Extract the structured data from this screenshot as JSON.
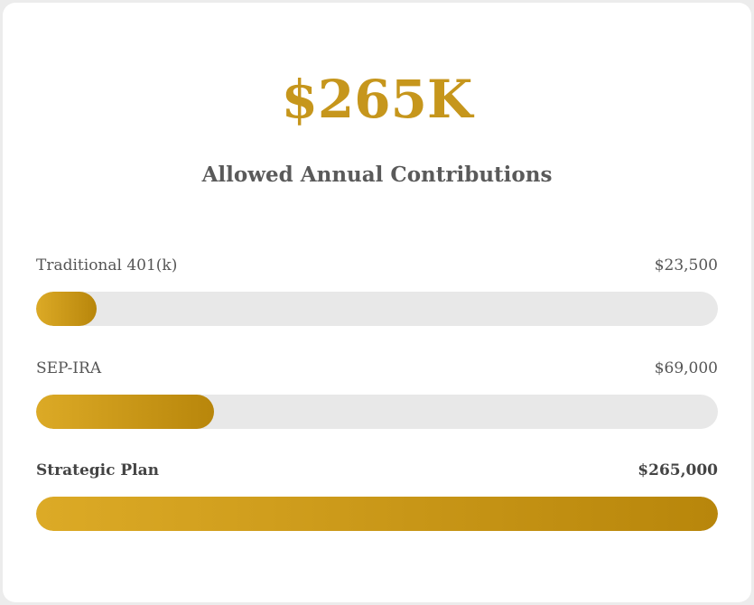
{
  "headline": "$265K",
  "subtitle": "Allowed Annual Contributions",
  "chart_data": {
    "type": "bar",
    "orientation": "horizontal",
    "categories": [
      "Traditional 401(k)",
      "SEP-IRA",
      "Strategic Plan"
    ],
    "values": [
      23500,
      69000,
      265000
    ],
    "value_labels": [
      "$23,500",
      "$69,000",
      "$265,000"
    ],
    "xlim": [
      0,
      265000
    ],
    "highlighted_category": "Strategic Plan",
    "colors": {
      "fill_start": "#dcaa26",
      "fill_end": "#b8860b",
      "track": "#e8e8e8"
    }
  }
}
